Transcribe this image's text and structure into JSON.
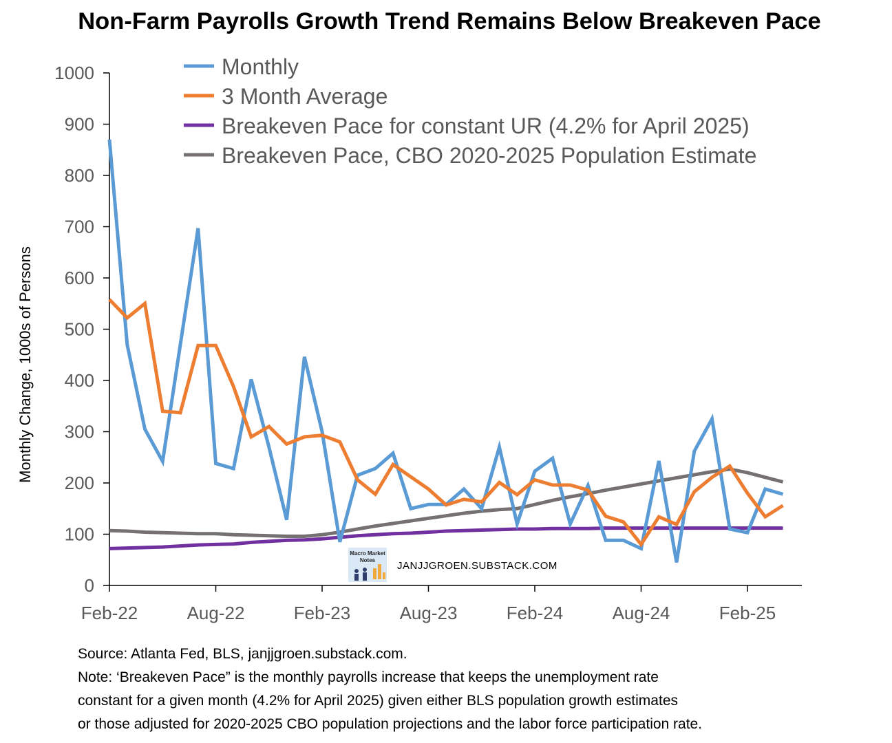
{
  "chart_data": {
    "type": "line",
    "title": "Non-Farm Payrolls Growth Trend Remains Below Breakeven Pace",
    "ylabel": "Monthly Change, 1000s of Persons",
    "xlabel": "",
    "ylim": [
      0,
      1000
    ],
    "yticks": [
      0,
      100,
      200,
      300,
      400,
      500,
      600,
      700,
      800,
      900,
      1000
    ],
    "x_tick_labels": [
      "Feb-22",
      "Aug-22",
      "Feb-23",
      "Aug-23",
      "Feb-24",
      "Aug-24",
      "Feb-25"
    ],
    "x_start": "2022-02",
    "x_end": "2025-04",
    "legend_position": "top",
    "grid": false,
    "x": [
      "2022-02",
      "2022-03",
      "2022-04",
      "2022-05",
      "2022-06",
      "2022-07",
      "2022-08",
      "2022-09",
      "2022-10",
      "2022-11",
      "2022-12",
      "2023-01",
      "2023-02",
      "2023-03",
      "2023-04",
      "2023-05",
      "2023-06",
      "2023-07",
      "2023-08",
      "2023-09",
      "2023-10",
      "2023-11",
      "2023-12",
      "2024-01",
      "2024-02",
      "2024-03",
      "2024-04",
      "2024-05",
      "2024-06",
      "2024-07",
      "2024-08",
      "2024-09",
      "2024-10",
      "2024-11",
      "2024-12",
      "2025-01",
      "2025-02",
      "2025-03",
      "2025-04"
    ],
    "series": [
      {
        "name": "Monthly",
        "color": "#5B9BD5",
        "values": [
          870,
          470,
          305,
          242,
          470,
          697,
          238,
          228,
          402,
          270,
          128,
          446,
          300,
          85,
          215,
          228,
          258,
          150,
          158,
          158,
          188,
          150,
          270,
          120,
          223,
          248,
          120,
          195,
          88,
          88,
          72,
          243,
          45,
          262,
          325,
          110,
          103,
          188,
          178
        ]
      },
      {
        "name": "3 Month Average",
        "color": "#ED7D31",
        "values": [
          558,
          522,
          550,
          340,
          337,
          468,
          468,
          388,
          290,
          310,
          276,
          290,
          293,
          280,
          206,
          178,
          236,
          212,
          188,
          157,
          168,
          163,
          201,
          177,
          206,
          196,
          196,
          186,
          135,
          124,
          80,
          134,
          119,
          183,
          211,
          233,
          180,
          134,
          156
        ]
      },
      {
        "name": "Breakeven Pace for constant UR (4.2% for April 2025)",
        "color": "#7030A0",
        "values": [
          72,
          73,
          74,
          75,
          77,
          79,
          80,
          81,
          84,
          86,
          88,
          89,
          91,
          94,
          97,
          99,
          101,
          102,
          104,
          106,
          107,
          108,
          109,
          110,
          110,
          111,
          111,
          111,
          112,
          112,
          112,
          112,
          112,
          112,
          112,
          112,
          112,
          112,
          112
        ]
      },
      {
        "name": "Breakeven Pace, CBO 2020-2025 Population Estimate",
        "color": "#767171",
        "values": [
          107,
          106,
          104,
          103,
          102,
          101,
          101,
          99,
          98,
          97,
          96,
          96,
          99,
          104,
          110,
          116,
          121,
          126,
          131,
          136,
          141,
          145,
          148,
          150,
          158,
          166,
          173,
          179,
          186,
          192,
          198,
          204,
          210,
          216,
          222,
          227,
          220,
          211,
          202
        ]
      }
    ]
  },
  "watermark": {
    "logo_text": "Macro Market Notes",
    "text": "JANJJGROEN.SUBSTACK.COM"
  },
  "footer": {
    "source": "Source: Atlanta Fed, BLS, janjjgroen.substack.com.",
    "note_line1": "Note: ‘Breakeven Pace” is the monthly payrolls increase that keeps the unemployment rate",
    "note_line2": "constant for a given month (4.2% for April 2025) given either BLS population growth estimates",
    "note_line3": "or those adjusted for 2020-2025 CBO population projections and the labor force participation rate."
  }
}
